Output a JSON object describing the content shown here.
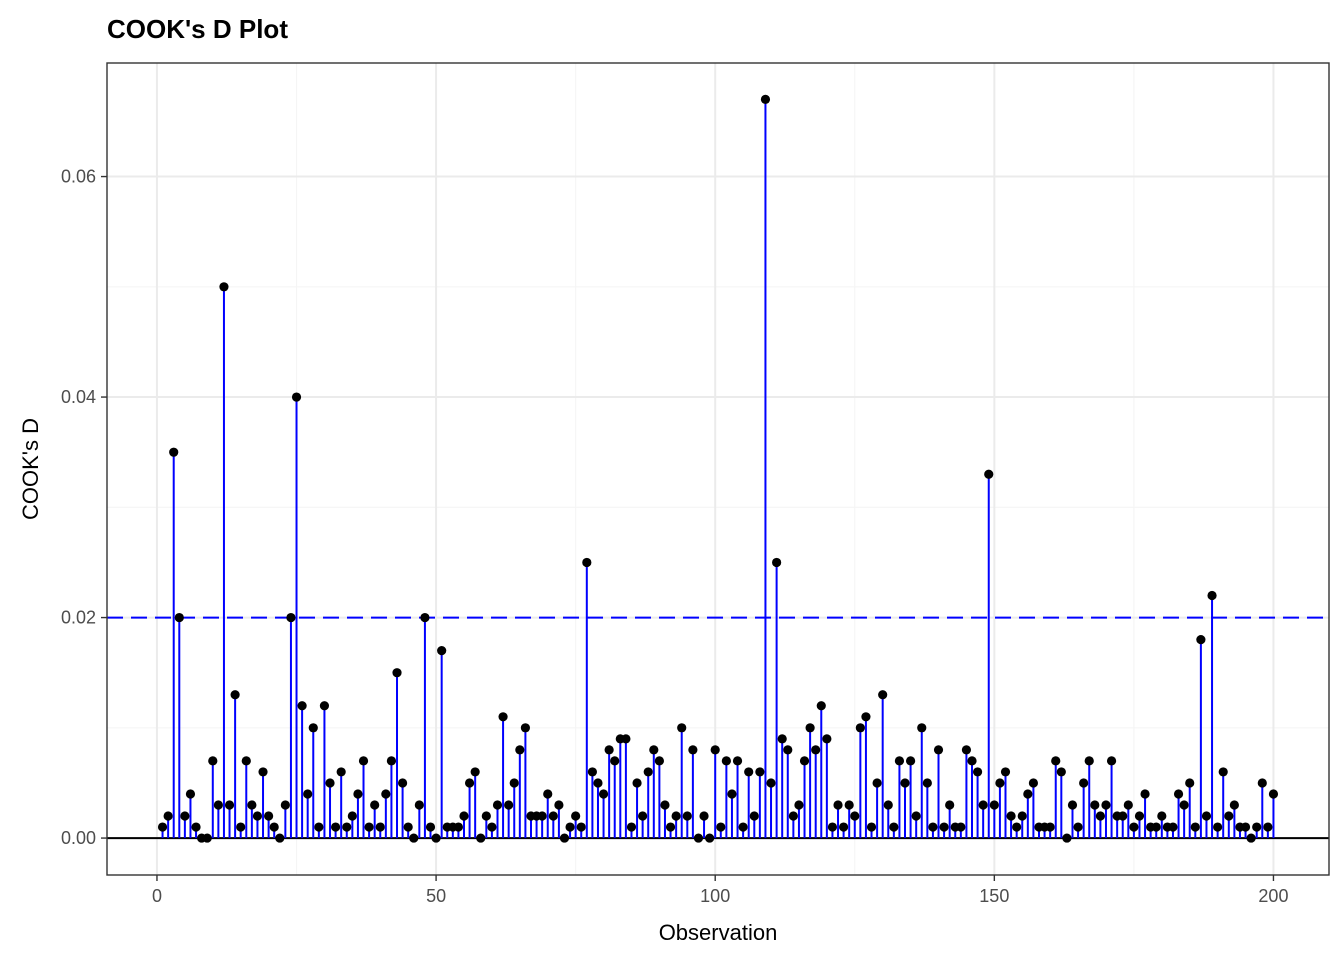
{
  "chart_data": {
    "type": "lollipop",
    "title": "COOK's D Plot",
    "xlabel": "Observation",
    "ylabel": "COOK's D",
    "xlim": [
      -8.95,
      209.95
    ],
    "ylim": [
      -0.00335,
      0.0703
    ],
    "x_ticks": [
      0,
      50,
      100,
      150,
      200
    ],
    "x_minor_ticks": [
      25,
      75,
      125,
      175
    ],
    "y_ticks": [
      0.0,
      0.02,
      0.04,
      0.06
    ],
    "y_tick_labels": [
      "0.00",
      "0.02",
      "0.04",
      "0.06"
    ],
    "y_minor_ticks": [
      0.01,
      0.03,
      0.05
    ],
    "grid": true,
    "threshold": 0.02,
    "x": [
      1,
      2,
      3,
      4,
      5,
      6,
      7,
      8,
      9,
      10,
      11,
      12,
      13,
      14,
      15,
      16,
      17,
      18,
      19,
      20,
      21,
      22,
      23,
      24,
      25,
      26,
      27,
      28,
      29,
      30,
      31,
      32,
      33,
      34,
      35,
      36,
      37,
      38,
      39,
      40,
      41,
      42,
      43,
      44,
      45,
      46,
      47,
      48,
      49,
      50,
      51,
      52,
      53,
      54,
      55,
      56,
      57,
      58,
      59,
      60,
      61,
      62,
      63,
      64,
      65,
      66,
      67,
      68,
      69,
      70,
      71,
      72,
      73,
      74,
      75,
      76,
      77,
      78,
      79,
      80,
      81,
      82,
      83,
      84,
      85,
      86,
      87,
      88,
      89,
      90,
      91,
      92,
      93,
      94,
      95,
      96,
      97,
      98,
      99,
      100,
      101,
      102,
      103,
      104,
      105,
      106,
      107,
      108,
      109,
      110,
      111,
      112,
      113,
      114,
      115,
      116,
      117,
      118,
      119,
      120,
      121,
      122,
      123,
      124,
      125,
      126,
      127,
      128,
      129,
      130,
      131,
      132,
      133,
      134,
      135,
      136,
      137,
      138,
      139,
      140,
      141,
      142,
      143,
      144,
      145,
      146,
      147,
      148,
      149,
      150,
      151,
      152,
      153,
      154,
      155,
      156,
      157,
      158,
      159,
      160,
      161,
      162,
      163,
      164,
      165,
      166,
      167,
      168,
      169,
      170,
      171,
      172,
      173,
      174,
      175,
      176,
      177,
      178,
      179,
      180,
      181,
      182,
      183,
      184,
      185,
      186,
      187,
      188,
      189,
      190,
      191,
      192,
      193,
      194,
      195,
      196,
      197,
      198,
      199,
      200
    ],
    "values": [
      0.001,
      0.002,
      0.035,
      0.02,
      0.002,
      0.004,
      0.001,
      0.0,
      0.0,
      0.007,
      0.003,
      0.05,
      0.003,
      0.013,
      0.001,
      0.007,
      0.003,
      0.002,
      0.006,
      0.002,
      0.001,
      0.0,
      0.003,
      0.02,
      0.04,
      0.012,
      0.004,
      0.01,
      0.001,
      0.012,
      0.005,
      0.001,
      0.006,
      0.001,
      0.002,
      0.004,
      0.007,
      0.001,
      0.003,
      0.001,
      0.004,
      0.007,
      0.015,
      0.005,
      0.001,
      0.0,
      0.003,
      0.02,
      0.001,
      0.0,
      0.017,
      0.001,
      0.001,
      0.001,
      0.002,
      0.005,
      0.006,
      0.0,
      0.002,
      0.001,
      0.003,
      0.011,
      0.003,
      0.005,
      0.008,
      0.01,
      0.002,
      0.002,
      0.002,
      0.004,
      0.002,
      0.003,
      0.0,
      0.001,
      0.002,
      0.001,
      0.025,
      0.006,
      0.005,
      0.004,
      0.008,
      0.007,
      0.009,
      0.009,
      0.001,
      0.005,
      0.002,
      0.006,
      0.008,
      0.007,
      0.003,
      0.001,
      0.002,
      0.01,
      0.002,
      0.008,
      0.0,
      0.002,
      0.0,
      0.008,
      0.001,
      0.007,
      0.004,
      0.007,
      0.001,
      0.006,
      0.002,
      0.006,
      0.067,
      0.005,
      0.025,
      0.009,
      0.008,
      0.002,
      0.003,
      0.007,
      0.01,
      0.008,
      0.012,
      0.009,
      0.001,
      0.003,
      0.001,
      0.003,
      0.002,
      0.01,
      0.011,
      0.001,
      0.005,
      0.013,
      0.003,
      0.001,
      0.007,
      0.005,
      0.007,
      0.002,
      0.01,
      0.005,
      0.001,
      0.008,
      0.001,
      0.003,
      0.001,
      0.001,
      0.008,
      0.007,
      0.006,
      0.003,
      0.033,
      0.003,
      0.005,
      0.006,
      0.002,
      0.001,
      0.002,
      0.004,
      0.005,
      0.001,
      0.001,
      0.001,
      0.007,
      0.006,
      0.0,
      0.003,
      0.001,
      0.005,
      0.007,
      0.003,
      0.002,
      0.003,
      0.007,
      0.002,
      0.002,
      0.003,
      0.001,
      0.002,
      0.004,
      0.001,
      0.001,
      0.002,
      0.001,
      0.001,
      0.004,
      0.003,
      0.005,
      0.001,
      0.018,
      0.002,
      0.022,
      0.001,
      0.006,
      0.002,
      0.003,
      0.001,
      0.001,
      0.0,
      0.001,
      0.005,
      0.001,
      0.004
    ],
    "colors": {
      "stem": "#0000ff",
      "point": "#000000",
      "threshold_line": "#0000ff",
      "zero_line": "#000000",
      "grid_major": "#ebebeb",
      "grid_minor": "#f5f5f5",
      "panel_border": "#333333",
      "tick_label": "#4d4d4d"
    }
  }
}
